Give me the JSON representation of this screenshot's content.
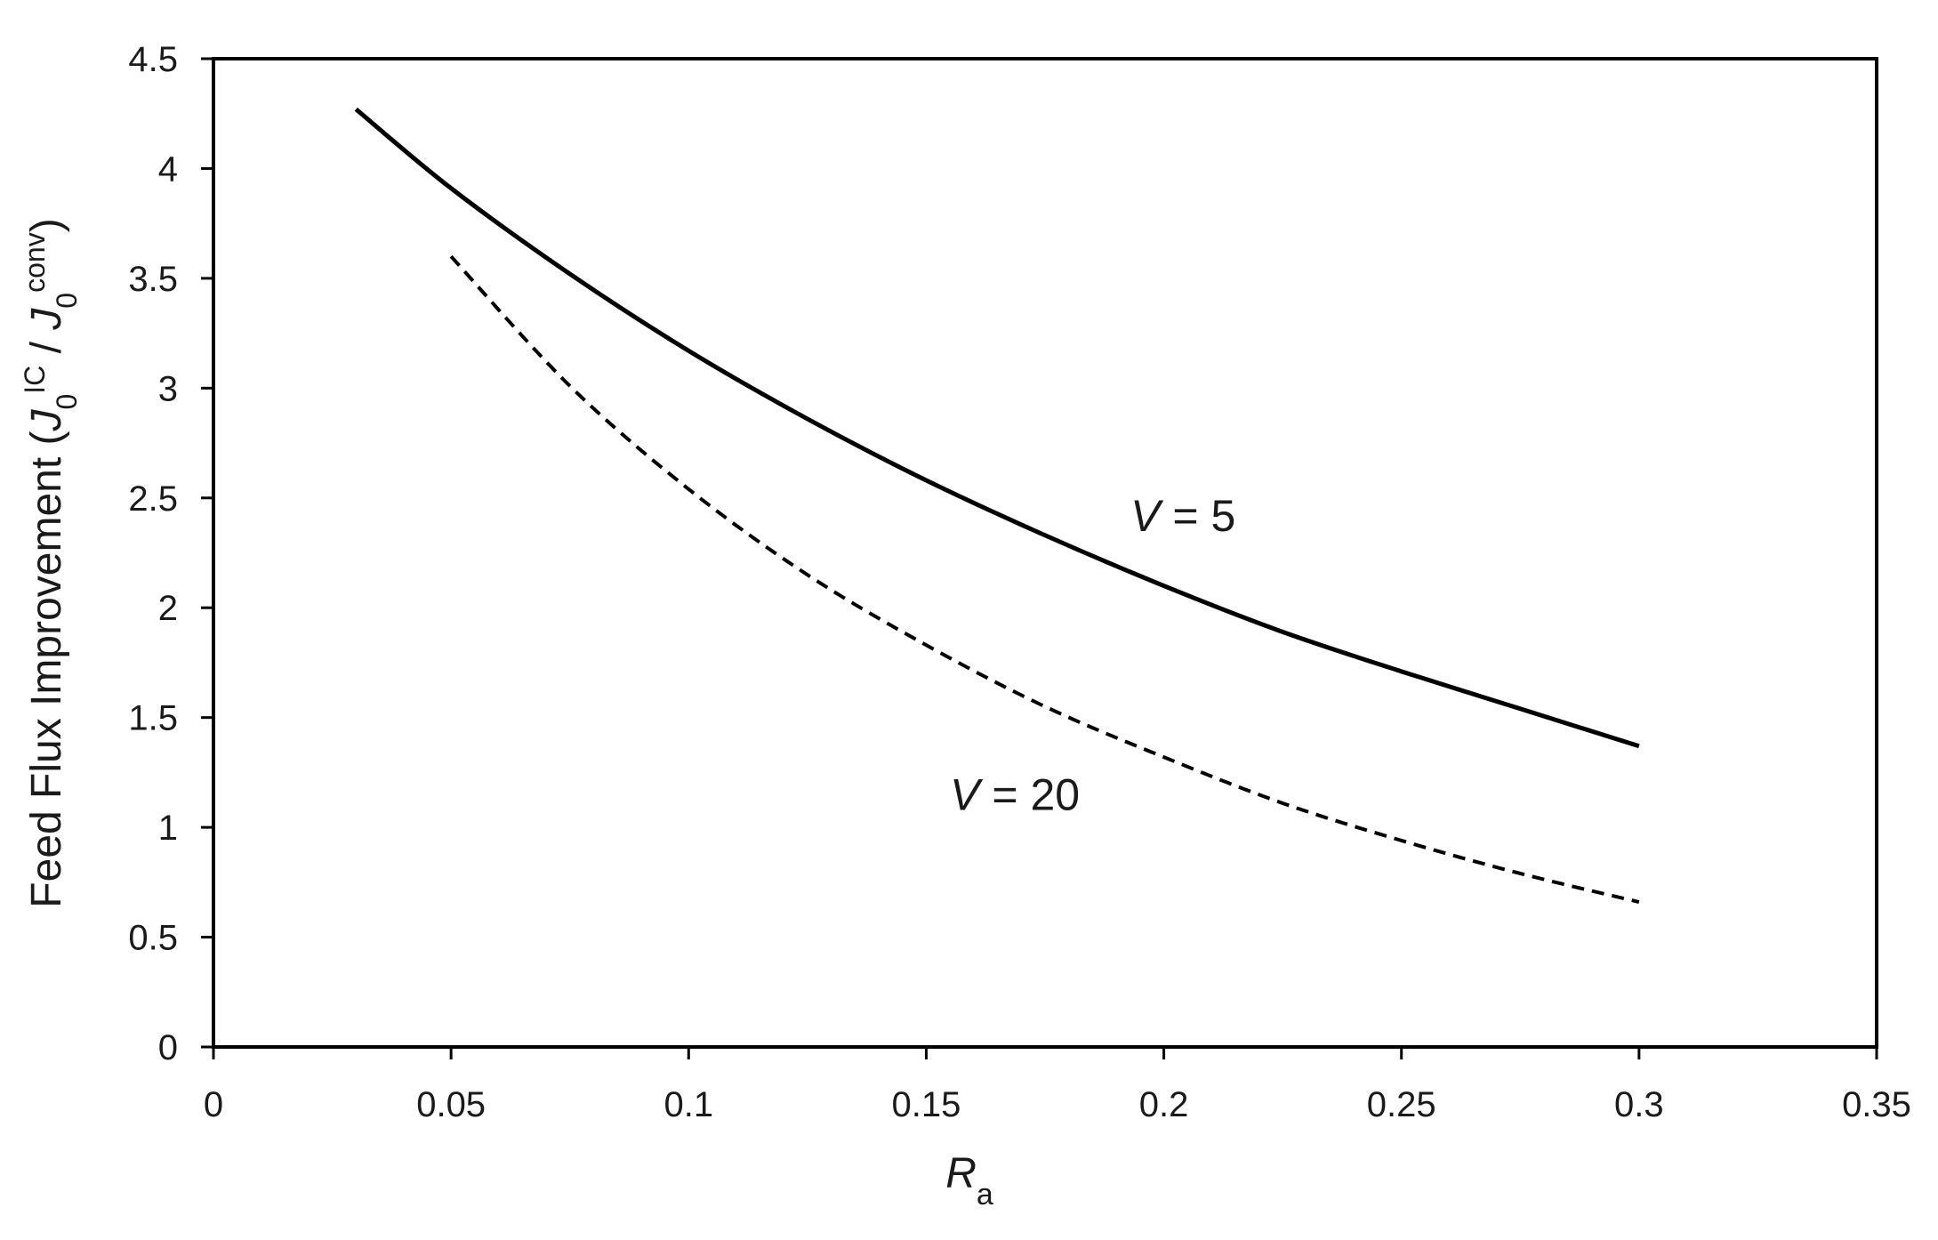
{
  "chart_data": {
    "type": "line",
    "title": "",
    "xlabel": {
      "main": "R",
      "sub": "a"
    },
    "ylabel": {
      "prefix": "Feed Flux Improvement (",
      "j1": "J",
      "j1_sub": "0",
      "j1_sup": "IC",
      "sep": " / ",
      "j2": "J",
      "j2_sub": "0",
      "j2_sup": "conv",
      "suffix": ")"
    },
    "xlim": [
      0,
      0.35
    ],
    "ylim": [
      0,
      4.5
    ],
    "xticks": [
      "0",
      "0.05",
      "0.1",
      "0.15",
      "0.2",
      "0.25",
      "0.3",
      "0.35"
    ],
    "yticks": [
      "0",
      "0.5",
      "1",
      "1.5",
      "2",
      "2.5",
      "3",
      "3.5",
      "4",
      "4.5"
    ],
    "grid": false,
    "legend": "none",
    "series": [
      {
        "style": "solid",
        "color": "#000000",
        "x": [
          0.03,
          0.05,
          0.075,
          0.1,
          0.125,
          0.15,
          0.175,
          0.2,
          0.225,
          0.25,
          0.275,
          0.3
        ],
        "y": [
          4.27,
          3.91,
          3.52,
          3.17,
          2.86,
          2.58,
          2.33,
          2.1,
          1.89,
          1.71,
          1.54,
          1.37
        ]
      },
      {
        "style": "dashed",
        "color": "#000000",
        "x": [
          0.05,
          0.075,
          0.1,
          0.125,
          0.15,
          0.175,
          0.2,
          0.225,
          0.25,
          0.275,
          0.3
        ],
        "y": [
          3.6,
          3.01,
          2.54,
          2.15,
          1.83,
          1.55,
          1.32,
          1.11,
          0.94,
          0.79,
          0.66
        ]
      }
    ],
    "annotations": [
      {
        "var": "V",
        "text": " = 5",
        "x": 0.193,
        "y": 2.35
      },
      {
        "var": "V",
        "text": " = 20",
        "x": 0.155,
        "y": 1.08
      }
    ]
  }
}
